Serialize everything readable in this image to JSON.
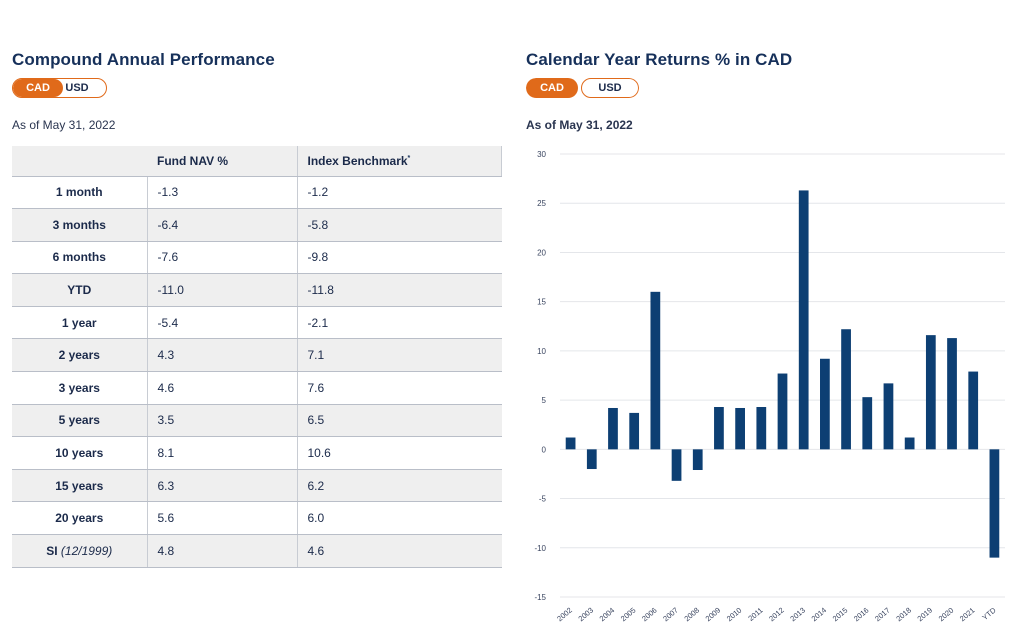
{
  "left": {
    "title": "Compound Annual Performance",
    "toggle": {
      "cad": "CAD",
      "usd": "USD",
      "active": "CAD"
    },
    "as_of": "As of May 31, 2022",
    "table": {
      "headers": [
        "",
        "Fund NAV %",
        "Index Benchmark"
      ],
      "benchmark_marker": "*",
      "rows": [
        {
          "period": "1 month",
          "fund": "-1.3",
          "index": "-1.2"
        },
        {
          "period": "3 months",
          "fund": "-6.4",
          "index": "-5.8"
        },
        {
          "period": "6 months",
          "fund": "-7.6",
          "index": "-9.8"
        },
        {
          "period": "YTD",
          "fund": "-11.0",
          "index": "-11.8"
        },
        {
          "period": "1 year",
          "fund": "-5.4",
          "index": "-2.1"
        },
        {
          "period": "2 years",
          "fund": "4.3",
          "index": "7.1"
        },
        {
          "period": "3 years",
          "fund": "4.6",
          "index": "7.6"
        },
        {
          "period": "5 years",
          "fund": "3.5",
          "index": "6.5"
        },
        {
          "period": "10 years",
          "fund": "8.1",
          "index": "10.6"
        },
        {
          "period": "15 years",
          "fund": "6.3",
          "index": "6.2"
        },
        {
          "period": "20 years",
          "fund": "5.6",
          "index": "6.0"
        },
        {
          "period": "SI",
          "period_note": "(12/1999)",
          "fund": "4.8",
          "index": "4.6"
        }
      ]
    }
  },
  "right": {
    "title": "Calendar Year Returns % in CAD",
    "toggle": {
      "cad": "CAD",
      "usd": "USD",
      "active": "CAD"
    },
    "as_of": "As of May 31, 2022"
  },
  "colors": {
    "accent": "#e06a1a",
    "bar": "#0d3f73",
    "title": "#16305a"
  },
  "chart_data": {
    "type": "bar",
    "title": "Calendar Year Returns % in CAD",
    "categories": [
      "2002",
      "2003",
      "2004",
      "2005",
      "2006",
      "2007",
      "2008",
      "2009",
      "2010",
      "2011",
      "2012",
      "2013",
      "2014",
      "2015",
      "2016",
      "2017",
      "2018",
      "2019",
      "2020",
      "2021",
      "YTD"
    ],
    "values": [
      1.2,
      -2.0,
      4.2,
      3.7,
      16.0,
      -3.2,
      -2.1,
      4.3,
      4.2,
      4.3,
      7.7,
      26.3,
      9.2,
      12.2,
      5.3,
      6.7,
      1.2,
      11.6,
      11.3,
      7.9,
      -11.0
    ],
    "ylim": [
      -15,
      30
    ],
    "yticks": [
      30,
      25,
      20,
      15,
      10,
      5,
      0,
      -5,
      -10,
      -15
    ],
    "xlabel": "",
    "ylabel": "",
    "grid": true
  }
}
